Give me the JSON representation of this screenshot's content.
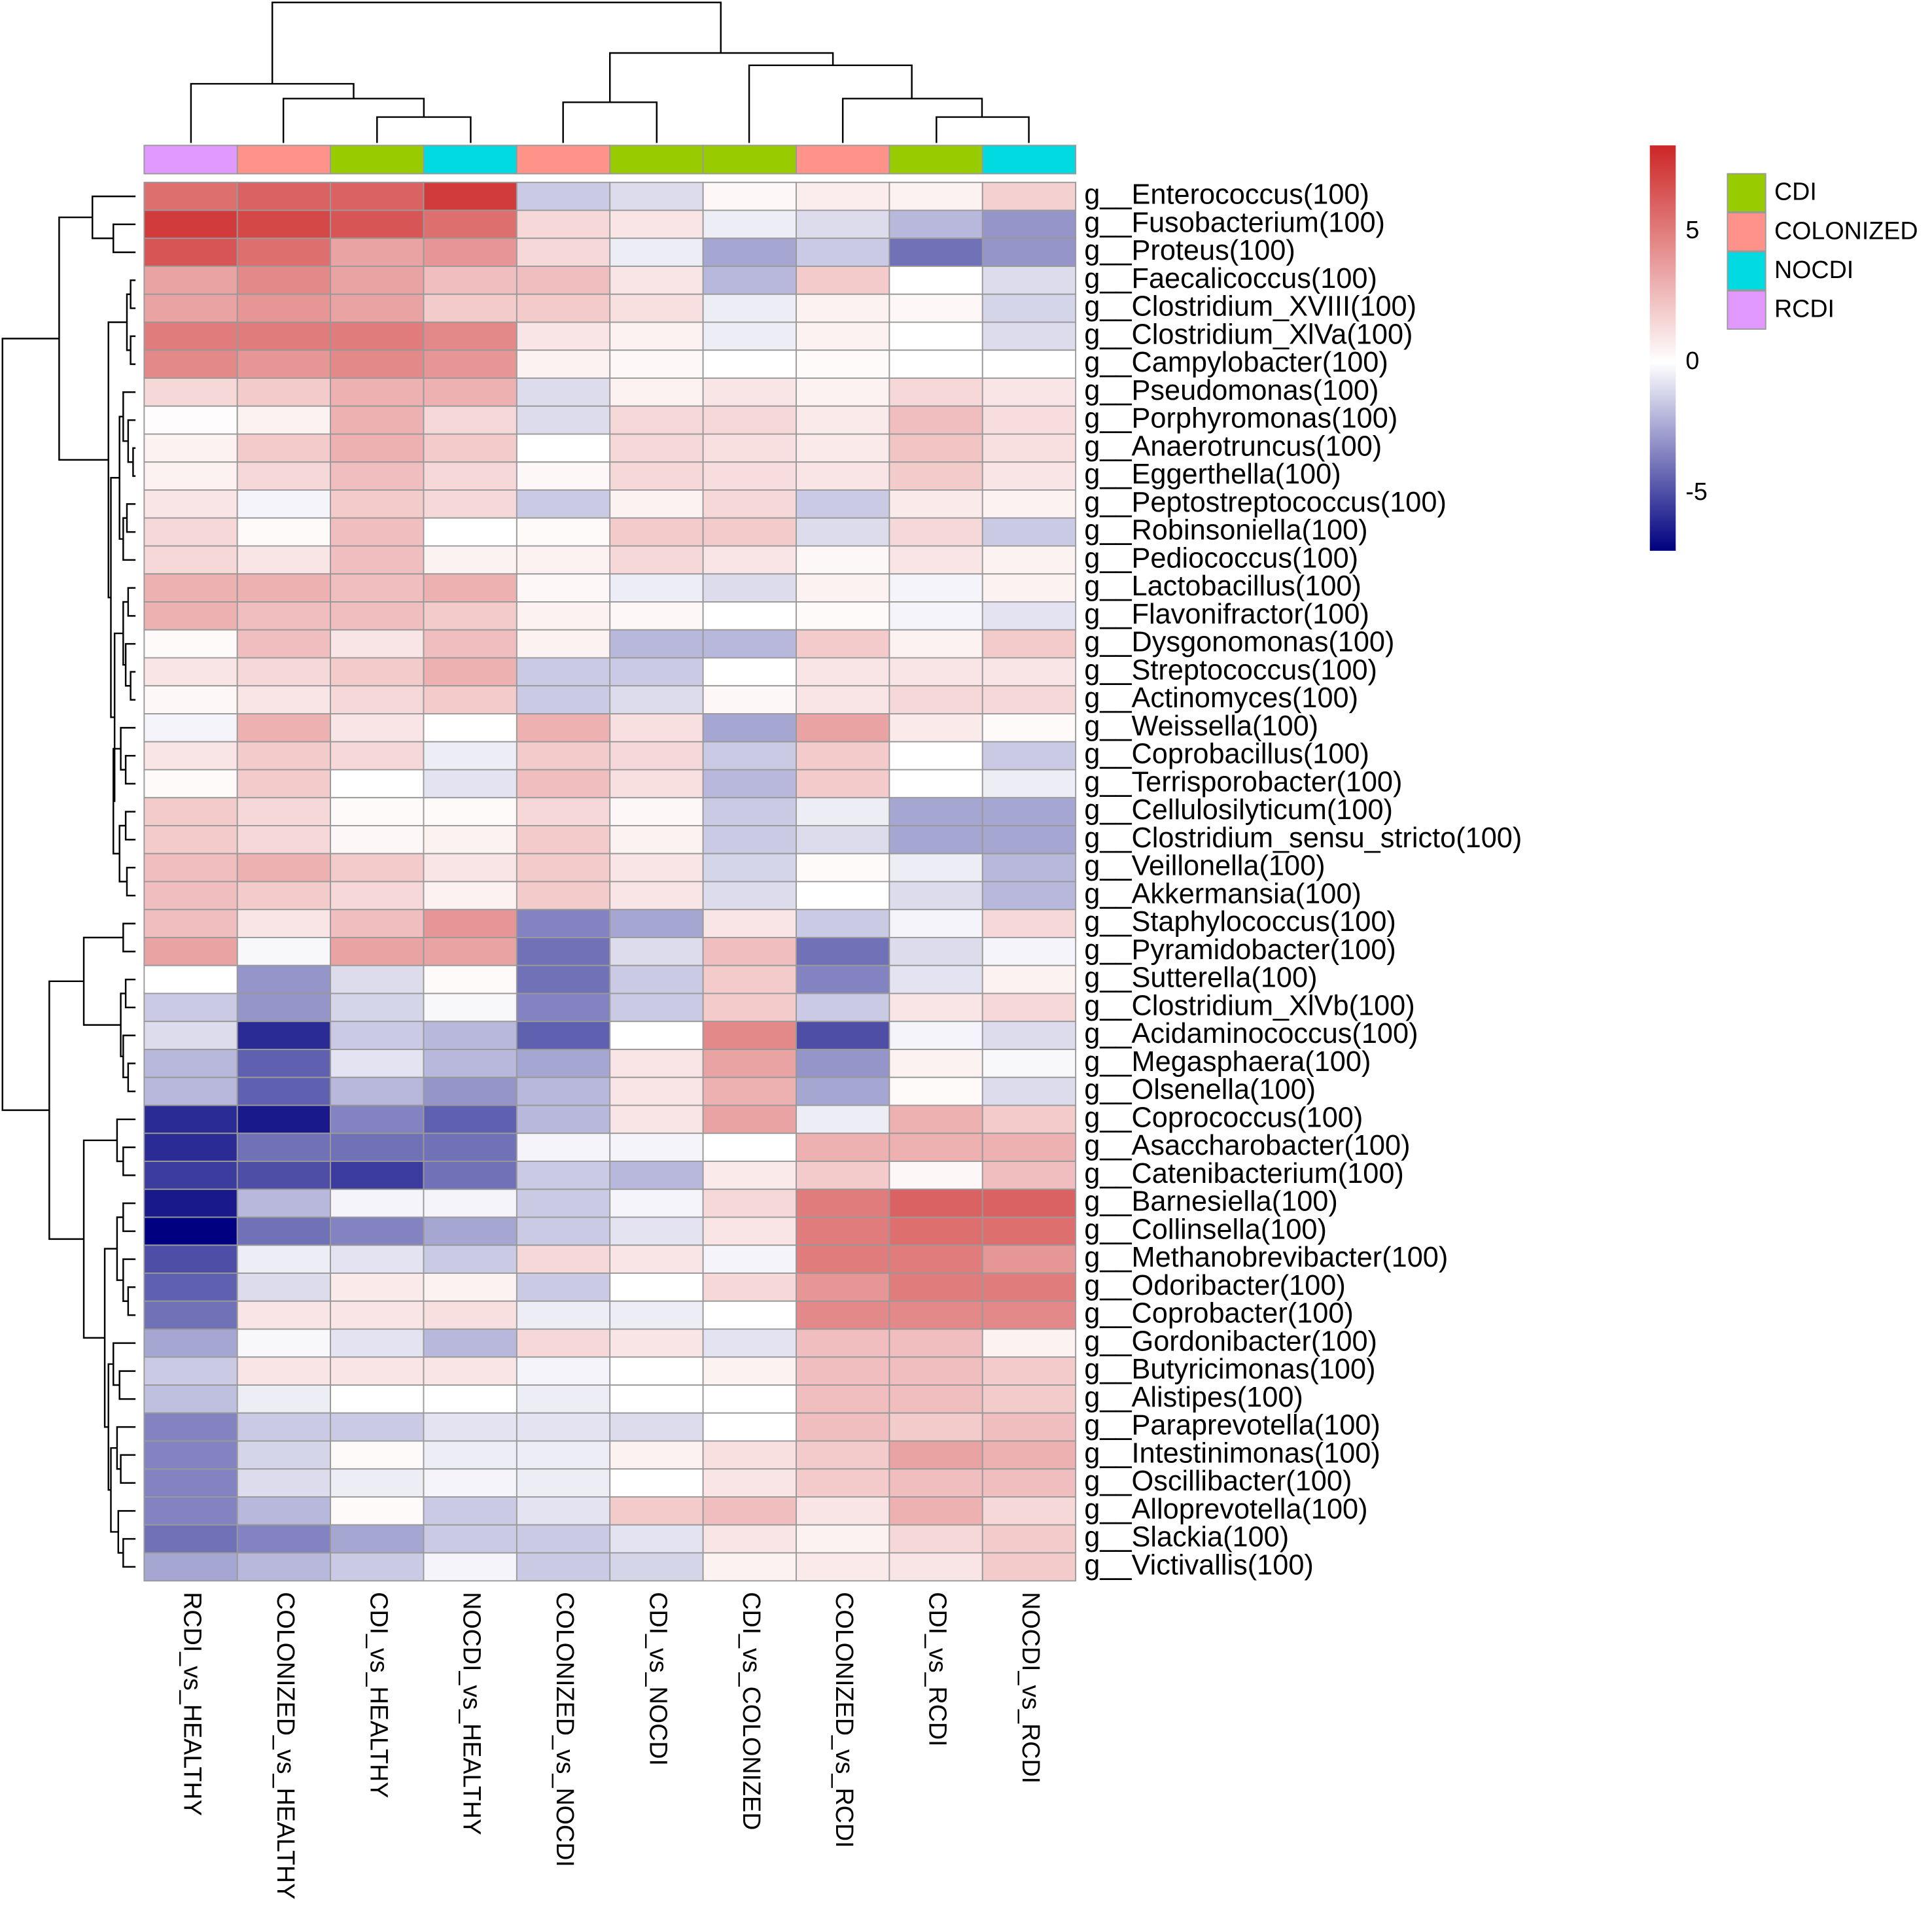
{
  "chart_data": {
    "type": "heatmap",
    "rows": [
      "g__Enterococcus(100)",
      "g__Fusobacterium(100)",
      "g__Proteus(100)",
      "g__Faecalicoccus(100)",
      "g__Clostridium_XVIII(100)",
      "g__Clostridium_XlVa(100)",
      "g__Campylobacter(100)",
      "g__Pseudomonas(100)",
      "g__Porphyromonas(100)",
      "g__Anaerotruncus(100)",
      "g__Eggerthella(100)",
      "g__Peptostreptococcus(100)",
      "g__Robinsoniella(100)",
      "g__Pediococcus(100)",
      "g__Lactobacillus(100)",
      "g__Flavonifractor(100)",
      "g__Dysgonomonas(100)",
      "g__Streptococcus(100)",
      "g__Actinomyces(100)",
      "g__Weissella(100)",
      "g__Coprobacillus(100)",
      "g__Terrisporobacter(100)",
      "g__Cellulosilyticum(100)",
      "g__Clostridium_sensu_stricto(100)",
      "g__Veillonella(100)",
      "g__Akkermansia(100)",
      "g__Staphylococcus(100)",
      "g__Pyramidobacter(100)",
      "g__Sutterella(100)",
      "g__Clostridium_XlVb(100)",
      "g__Acidaminococcus(100)",
      "g__Megasphaera(100)",
      "g__Olsenella(100)",
      "g__Coprococcus(100)",
      "g__Asaccharobacter(100)",
      "g__Catenibacterium(100)",
      "g__Barnesiella(100)",
      "g__Collinsella(100)",
      "g__Methanobrevibacter(100)",
      "g__Odoribacter(100)",
      "g__Coprobacter(100)",
      "g__Gordonibacter(100)",
      "g__Butyricimonas(100)",
      "g__Alistipes(100)",
      "g__Paraprevotella(100)",
      "g__Intestinimonas(100)",
      "g__Oscillibacter(100)",
      "g__Alloprevotella(100)",
      "g__Slackia(100)",
      "g__Victivallis(100)"
    ],
    "columns": [
      "RCDI_vs_HEALTHY",
      "COLONIZED_vs_HEALTHY",
      "CDI_vs_HEALTHY",
      "NOCDI_vs_HEALTHY",
      "COLONIZED_vs_NOCDI",
      "CDI_vs_NOCDI",
      "CDI_vs_COLONIZED",
      "COLONIZED_vs_RCDI",
      "CDI_vs_RCDI",
      "NOCDI_vs_RCDI"
    ],
    "column_groups": [
      "RCDI",
      "COLONIZED",
      "CDI",
      "NOCDI",
      "COLONIZED",
      "CDI",
      "CDI",
      "COLONIZED",
      "CDI",
      "NOCDI"
    ],
    "annotation_levels": [
      {
        "name": "CDI",
        "color": "#99cc00"
      },
      {
        "name": "COLONIZED",
        "color": "#ff9289"
      },
      {
        "name": "NOCDI",
        "color": "#00dae0"
      },
      {
        "name": "RCDI",
        "color": "#e199ff"
      }
    ],
    "values": [
      [
        5.5,
        6,
        6,
        7.5,
        -1.5,
        -1,
        0.3,
        0.7,
        0.5,
        1.8
      ],
      [
        7.5,
        7,
        6.5,
        5.5,
        1.5,
        1,
        -0.5,
        -1,
        -2,
        -3
      ],
      [
        6.5,
        5.5,
        3.5,
        4,
        1.5,
        -0.5,
        -2.5,
        -1.5,
        -4,
        -3
      ],
      [
        3.5,
        4.5,
        3.5,
        2.5,
        2.5,
        1,
        -2,
        2,
        0,
        -1
      ],
      [
        3.5,
        4,
        3.5,
        2,
        2,
        1.2,
        -0.5,
        0.5,
        0.3,
        -1.2
      ],
      [
        5,
        5,
        5,
        4.5,
        1,
        0.5,
        -0.5,
        0.5,
        0,
        -1
      ],
      [
        4.5,
        4,
        4.5,
        4,
        0.5,
        0.3,
        0,
        0.2,
        0,
        0
      ],
      [
        1.5,
        2,
        3,
        3,
        -1,
        0.5,
        1,
        0.5,
        1.5,
        1
      ],
      [
        0.1,
        0.5,
        3,
        1.5,
        -1,
        1.5,
        1.5,
        0.8,
        2.5,
        1.3
      ],
      [
        0.5,
        2,
        3,
        2,
        0,
        1.5,
        1.2,
        0.8,
        2.2,
        1.2
      ],
      [
        0.5,
        1.5,
        2.5,
        1.5,
        0.3,
        1.5,
        1.3,
        1,
        2,
        1
      ],
      [
        1,
        -0.3,
        2,
        1.5,
        -1.5,
        0.5,
        1.5,
        -1.5,
        0.8,
        0.5
      ],
      [
        1.5,
        0.2,
        2.5,
        0,
        0.2,
        2,
        2,
        -1,
        1.5,
        -1.5
      ],
      [
        1.5,
        1,
        2.5,
        0.5,
        0.5,
        1.5,
        1,
        0.3,
        1,
        0.5
      ],
      [
        3,
        3,
        2.5,
        3,
        0.3,
        -0.5,
        -1,
        0.5,
        -0.3,
        0.5
      ],
      [
        3,
        2.5,
        2.5,
        2,
        0.5,
        0.3,
        0,
        0.2,
        -0.3,
        -0.8
      ],
      [
        0.2,
        2.5,
        1,
        2.5,
        0.5,
        -2,
        -2,
        2,
        0.5,
        2
      ],
      [
        1,
        1.5,
        2,
        3,
        -1.5,
        -1.5,
        0,
        1,
        1,
        1
      ],
      [
        0.3,
        1,
        1.5,
        2,
        -1.5,
        -1,
        0.3,
        1,
        1.5,
        1.5
      ],
      [
        -0.3,
        3,
        1,
        0,
        3,
        1.2,
        -2.5,
        3.5,
        0.8,
        0.2
      ],
      [
        1,
        2,
        1.5,
        -0.5,
        2,
        1.5,
        -1.5,
        2,
        0,
        -1.5
      ],
      [
        0.2,
        2,
        0,
        -0.8,
        2.5,
        1.2,
        -2,
        2,
        0,
        -0.5
      ],
      [
        2,
        1.5,
        0.2,
        0.2,
        1.5,
        0.3,
        -1.5,
        -0.5,
        -2.5,
        -2.5
      ],
      [
        2,
        1.5,
        0.3,
        0.5,
        2,
        0.5,
        -1.5,
        -1,
        -2.5,
        -2.5
      ],
      [
        2.5,
        3,
        2,
        1,
        2,
        1,
        -1.2,
        0.2,
        -0.5,
        -2
      ],
      [
        2.5,
        2,
        1.5,
        0.5,
        2,
        1,
        -1,
        0,
        -1,
        -2
      ],
      [
        2.5,
        1,
        2.5,
        4,
        -3.5,
        -2.5,
        1,
        -1.5,
        -0.3,
        1.5
      ],
      [
        3.5,
        -0.2,
        3.5,
        3.5,
        -4,
        -1,
        2.5,
        -4,
        -1,
        -0.3
      ],
      [
        0,
        -3,
        -1,
        0.2,
        -4,
        -1.5,
        2,
        -3.5,
        -0.8,
        0.5
      ],
      [
        -1.5,
        -3,
        -1.2,
        -0.2,
        -3.5,
        -1.5,
        2,
        -1.5,
        1,
        1.5
      ],
      [
        -1,
        -6,
        -1.5,
        -2,
        -4.5,
        0,
        4.5,
        -5,
        -0.3,
        -1
      ],
      [
        -2,
        -4.5,
        -0.8,
        -2,
        -2.5,
        1,
        3.5,
        -3,
        0.5,
        -0.2
      ],
      [
        -2,
        -4.5,
        -2,
        -3,
        -2,
        1,
        3,
        -2.5,
        0.2,
        -1
      ],
      [
        -6,
        -6.5,
        -3.5,
        -4.5,
        -2,
        1,
        3.5,
        -0.5,
        3,
        2
      ],
      [
        -6,
        -4,
        -4,
        -4,
        -0.3,
        -0.3,
        0,
        3,
        3,
        3
      ],
      [
        -5.5,
        -5,
        -5.5,
        -4,
        -1.5,
        -2,
        0.8,
        2,
        0.3,
        2.5
      ],
      [
        -6.5,
        -2,
        -0.3,
        -0.3,
        -1.5,
        -0.3,
        1.5,
        5,
        6,
        6
      ],
      [
        -7.2,
        -4,
        -3.5,
        -2.5,
        -1.5,
        -0.8,
        1,
        5,
        5.5,
        5.5
      ],
      [
        -5,
        -0.5,
        -0.8,
        -1.5,
        1.5,
        1,
        -0.3,
        5,
        5,
        4
      ],
      [
        -4.5,
        -1,
        0.8,
        0.5,
        -1.5,
        0,
        1.5,
        4,
        5,
        5
      ],
      [
        -4,
        1,
        1,
        1.2,
        -0.5,
        -0.5,
        0,
        4.5,
        4.5,
        4.5
      ],
      [
        -2.5,
        -0.2,
        -0.8,
        -2,
        1.5,
        1,
        -0.8,
        2.5,
        2.5,
        0.5
      ],
      [
        -1.5,
        1,
        1,
        1,
        -0.3,
        0,
        0.5,
        2.5,
        2.5,
        2
      ],
      [
        -1.8,
        -0.5,
        0,
        0,
        -0.5,
        0,
        0,
        2.5,
        2.5,
        2
      ],
      [
        -3.5,
        -1.5,
        -1.5,
        -0.8,
        -0.8,
        -1,
        0,
        2.5,
        2,
        2.5
      ],
      [
        -3.5,
        -1.2,
        0.2,
        -0.5,
        -0.5,
        0.5,
        1.2,
        2,
        3.5,
        3
      ],
      [
        -3.5,
        -1,
        -0.5,
        -0.3,
        -0.5,
        0,
        1,
        2,
        2.5,
        2.5
      ],
      [
        -3.5,
        -2,
        0.2,
        -1.5,
        -0.8,
        2,
        2.5,
        1,
        3,
        1.5
      ],
      [
        -4,
        -3.5,
        -2.5,
        -1.5,
        -1.5,
        -0.8,
        1,
        0.5,
        1.5,
        2
      ],
      [
        -2.5,
        -2,
        -1.5,
        -0.3,
        -1.5,
        -1.2,
        0.5,
        0.8,
        1,
        2
      ]
    ],
    "zlim": [
      -7.2,
      8.3
    ],
    "zticks": [
      -5,
      0,
      5
    ],
    "colors": [
      "#000080",
      "#ffffff",
      "#cd2626"
    ]
  }
}
